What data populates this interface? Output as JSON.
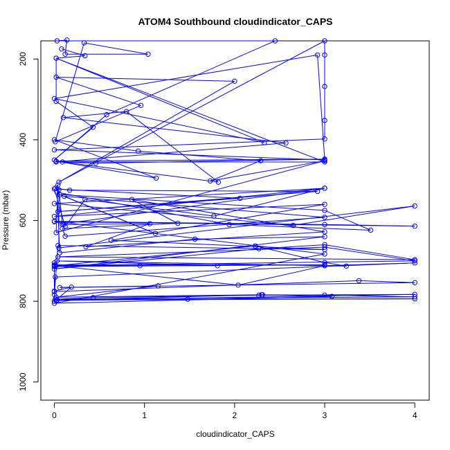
{
  "chart_data": {
    "type": "line",
    "title": "ATOM4 Southbound cloudindicator_CAPS",
    "xlabel": "cloudindicator_CAPS",
    "ylabel": "Pressure (mbar)",
    "xlim": [
      -0.15,
      4.16
    ],
    "ylim": [
      1045,
      155
    ],
    "y_reversed": true,
    "grid": false,
    "legend": "none",
    "x_ticks": [
      0,
      1,
      2,
      3,
      4
    ],
    "y_ticks": [
      200,
      400,
      600,
      800,
      1000
    ],
    "series_color": "#0000FF",
    "marker": "open-circle",
    "series": [
      {
        "values": [
          [
            0.08,
            175
          ],
          [
            0.34,
            192
          ],
          [
            0.02,
            198
          ],
          [
            0.02,
            305
          ],
          [
            0.43,
            369
          ],
          [
            0.0,
            450
          ],
          [
            0.58,
            338
          ],
          [
            2.45,
            155
          ],
          [
            0.03,
            155
          ],
          [
            0.14,
            153
          ],
          [
            0.12,
            188
          ],
          [
            1.04,
            188
          ],
          [
            0.33,
            160
          ],
          [
            0.01,
            405
          ],
          [
            0.96,
            315
          ],
          [
            0.02,
            245
          ],
          [
            2.0,
            255
          ],
          [
            0.05,
            505
          ],
          [
            3.0,
            155
          ],
          [
            3.0,
            190
          ],
          [
            3.0,
            268
          ],
          [
            3.0,
            352
          ],
          [
            3.0,
            398
          ],
          [
            0.0,
            425
          ],
          [
            3.0,
            450
          ],
          [
            2.92,
            190
          ],
          [
            0.0,
            298
          ],
          [
            2.33,
            407
          ],
          [
            0.02,
            198
          ],
          [
            3.0,
            455
          ],
          [
            0.02,
            455
          ],
          [
            2.57,
            408
          ],
          [
            0.1,
            345
          ],
          [
            0.8,
            330
          ],
          [
            1.82,
            505
          ],
          [
            0.09,
            455
          ],
          [
            0.46,
            458
          ],
          [
            3.0,
            448
          ],
          [
            0.02,
            453
          ],
          [
            1.13,
            495
          ],
          [
            0.0,
            400
          ],
          [
            0.93,
            428
          ],
          [
            2.29,
            452
          ],
          [
            1.73,
            502
          ],
          [
            3.0,
            452
          ],
          [
            0.02,
            630
          ],
          [
            0.04,
            512
          ],
          [
            0.01,
            520
          ],
          [
            0.17,
            525
          ],
          [
            2.92,
            528
          ],
          [
            0.04,
            578
          ],
          [
            2.06,
            545
          ],
          [
            0.0,
            522
          ],
          [
            0.12,
            615
          ],
          [
            0.34,
            548
          ],
          [
            1.77,
            589
          ],
          [
            3.0,
            520
          ],
          [
            0.0,
            558
          ],
          [
            2.65,
            612
          ],
          [
            4.0,
            564
          ],
          [
            0.05,
            668
          ],
          [
            0.05,
            524
          ],
          [
            0.09,
            610
          ],
          [
            1.06,
            608
          ],
          [
            0.35,
            665
          ],
          [
            3.0,
            628
          ],
          [
            0.86,
            548
          ],
          [
            1.37,
            607
          ],
          [
            0.09,
            620
          ],
          [
            0.12,
            639
          ],
          [
            3.0,
            592
          ],
          [
            0.11,
            540
          ],
          [
            1.12,
            632
          ],
          [
            0.06,
            536
          ],
          [
            3.0,
            575
          ],
          [
            3.51,
            624
          ],
          [
            1.94,
            610
          ],
          [
            0.03,
            530
          ],
          [
            0.06,
            680
          ],
          [
            1.56,
            646
          ],
          [
            3.0,
            640
          ],
          [
            0.0,
            720
          ],
          [
            2.27,
            670
          ],
          [
            3.0,
            660
          ],
          [
            4.0,
            697
          ],
          [
            0.04,
            690
          ],
          [
            3.0,
            666
          ],
          [
            4.0,
            700
          ],
          [
            0.02,
            712
          ],
          [
            2.23,
            663
          ],
          [
            3.0,
            704
          ],
          [
            3.24,
            713
          ],
          [
            0.03,
            700
          ],
          [
            1.81,
            712
          ],
          [
            0.95,
            712
          ],
          [
            0.0,
            712
          ],
          [
            2.04,
            760
          ],
          [
            3.0,
            712
          ],
          [
            4.0,
            705
          ],
          [
            0.01,
            740
          ],
          [
            0.0,
            776
          ],
          [
            3.38,
            749
          ],
          [
            4.0,
            754
          ],
          [
            0.06,
            766
          ],
          [
            1.15,
            762
          ],
          [
            0.02,
            790
          ],
          [
            2.3,
            784
          ],
          [
            3.0,
            785
          ],
          [
            4.0,
            789
          ],
          [
            0.01,
            795
          ],
          [
            0.43,
            791
          ],
          [
            2.27,
            785
          ],
          [
            4.0,
            783
          ],
          [
            0.02,
            798
          ],
          [
            1.48,
            795
          ],
          [
            4.0,
            794
          ],
          [
            0.03,
            797
          ],
          [
            2.31,
            784
          ],
          [
            3.08,
            788
          ],
          [
            0.0,
            805
          ],
          [
            3.0,
            683
          ],
          [
            0.0,
            602
          ],
          [
            3.0,
            610
          ],
          [
            4.0,
            614
          ],
          [
            0.0,
            603
          ],
          [
            0.1,
            608
          ],
          [
            3.0,
            520
          ],
          [
            0.0,
            590
          ],
          [
            3.0,
            560
          ],
          [
            0.63,
            649
          ],
          [
            3.0,
            672
          ],
          [
            0.04,
            662
          ],
          [
            0.0,
            784
          ],
          [
            0.0,
            800
          ],
          [
            0.19,
            765
          ],
          [
            0.0,
            775
          ],
          [
            0.0,
            710
          ],
          [
            3.0,
            710
          ],
          [
            0.0,
            714
          ],
          [
            0.0,
            705
          ]
        ]
      }
    ]
  }
}
